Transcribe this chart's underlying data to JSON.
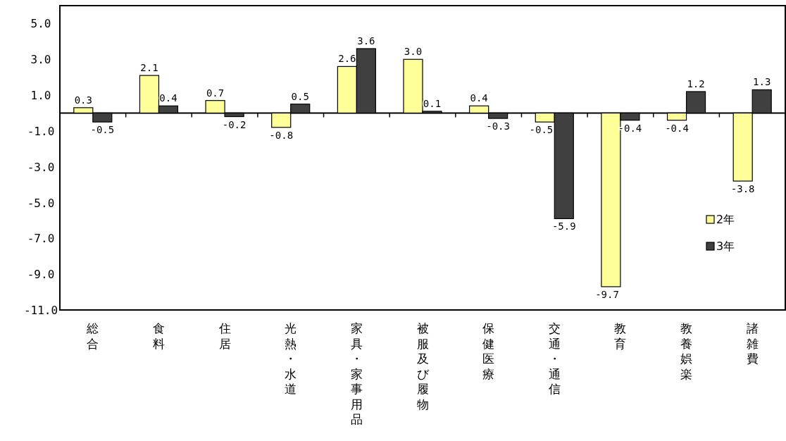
{
  "chart_data": {
    "type": "bar",
    "categories": [
      "総合",
      "食料",
      "住居",
      "光熱・水道",
      "家具・家事用品",
      "被服及び履物",
      "保健医療",
      "交通・通信",
      "教育",
      "教養娯楽",
      "諸雑費"
    ],
    "series": [
      {
        "name": "2年",
        "color": "#ffff99",
        "values": [
          0.3,
          2.1,
          0.7,
          -0.8,
          2.6,
          3.0,
          0.4,
          -0.5,
          -9.7,
          -0.4,
          -3.8
        ],
        "value_labels": [
          "0.3",
          "2.1",
          "0.7",
          "-0.8",
          "2.6",
          "3.0",
          "0.4",
          "-0.5",
          "-9.7",
          "-0.4",
          "-3.8"
        ]
      },
      {
        "name": "3年",
        "color": "#404040",
        "values": [
          -0.5,
          0.4,
          -0.2,
          0.5,
          3.6,
          0.1,
          -0.3,
          -5.9,
          -0.4,
          1.2,
          1.3
        ],
        "value_labels": [
          "-0.5",
          "0.4",
          "-0.2",
          "0.5",
          "3.6",
          "0.1",
          "-0.3",
          "-5.9",
          "-0.4",
          "1.2",
          "1.3"
        ]
      }
    ],
    "ylim": [
      -11,
      6
    ],
    "yticks": [
      {
        "value": -11,
        "label": "-11.0"
      },
      {
        "value": -9,
        "label": "-9.0"
      },
      {
        "value": -7,
        "label": "-7.0"
      },
      {
        "value": -5,
        "label": "-5.0"
      },
      {
        "value": -3,
        "label": "-3.0"
      },
      {
        "value": -1,
        "label": "-1.0"
      },
      {
        "value": 1,
        "label": "1.0"
      },
      {
        "value": 3,
        "label": "3.0"
      },
      {
        "value": 5,
        "label": "5.0"
      }
    ],
    "legend": "right"
  }
}
